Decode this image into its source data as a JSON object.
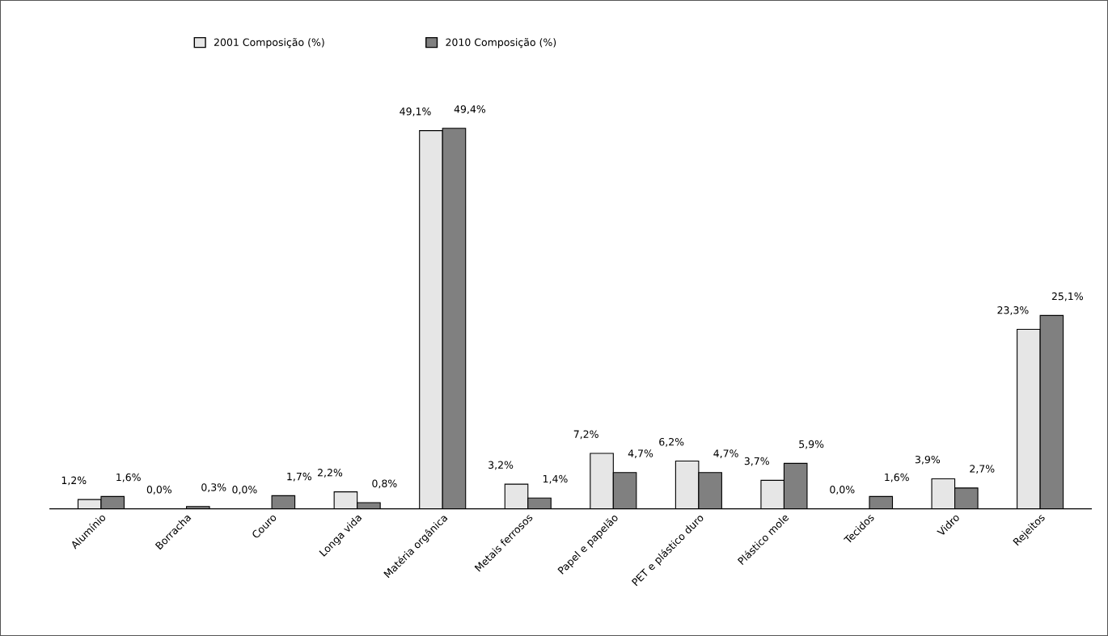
{
  "chart_data": {
    "type": "bar",
    "categories": [
      "Alumínio",
      "Borracha",
      "Couro",
      "Longa vida",
      "Matéria orgânica",
      "Metais ferrosos",
      "Papel e papelão",
      "PET e plástico duro",
      "Plástico mole",
      "Tecidos",
      "Vidro",
      "Rejeitos"
    ],
    "series": [
      {
        "name": "2001 Composição (%)",
        "color": "#e6e6e6",
        "values": [
          1.2,
          0.0,
          0.0,
          2.2,
          49.1,
          3.2,
          7.2,
          6.2,
          3.7,
          0.0,
          3.9,
          23.3
        ],
        "value_labels": [
          "1,2%",
          "0,0%",
          "0,0%",
          "2,2%",
          "49,1%",
          "3,2%",
          "7,2%",
          "6,2%",
          "3,7%",
          "0,0%",
          "3,9%",
          "23,3%"
        ]
      },
      {
        "name": "2010 Composição (%)",
        "color": "#808080",
        "values": [
          1.6,
          0.3,
          1.7,
          0.8,
          49.4,
          1.4,
          4.7,
          4.7,
          5.9,
          1.6,
          2.7,
          25.1
        ],
        "value_labels": [
          "1,6%",
          "0,3%",
          "1,7%",
          "0,8%",
          "49,4%",
          "1,4%",
          "4,7%",
          "4,7%",
          "5,9%",
          "1,6%",
          "2,7%",
          "25,1%"
        ]
      }
    ],
    "legend": "top",
    "grid": false
  }
}
